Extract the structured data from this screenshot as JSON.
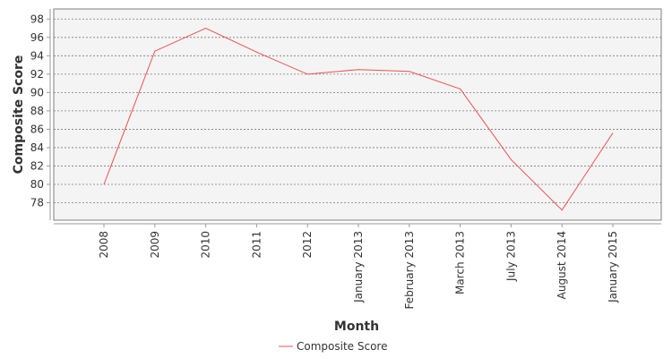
{
  "chart_data": {
    "type": "line",
    "title": "",
    "xlabel": "Month",
    "ylabel": "Composite Score",
    "categories": [
      "2008",
      "2009",
      "2010",
      "2011",
      "2012",
      "January 2013",
      "February 2013",
      "March 2013",
      "July 2013",
      "August 2014",
      "January 2015"
    ],
    "series": [
      {
        "name": "Composite Score",
        "values": [
          80.0,
          94.5,
          97.0,
          94.4,
          92.0,
          92.5,
          92.3,
          90.4,
          82.7,
          77.2,
          85.6
        ],
        "color": "#f05050"
      }
    ],
    "ylim": [
      76.1,
      99.1
    ],
    "yticks": [
      "78",
      "80",
      "82",
      "84",
      "86",
      "88",
      "90",
      "92",
      "94",
      "96",
      "98"
    ],
    "grid": true,
    "legend": "bottom-center",
    "plot_background": "#f4f4f4"
  }
}
